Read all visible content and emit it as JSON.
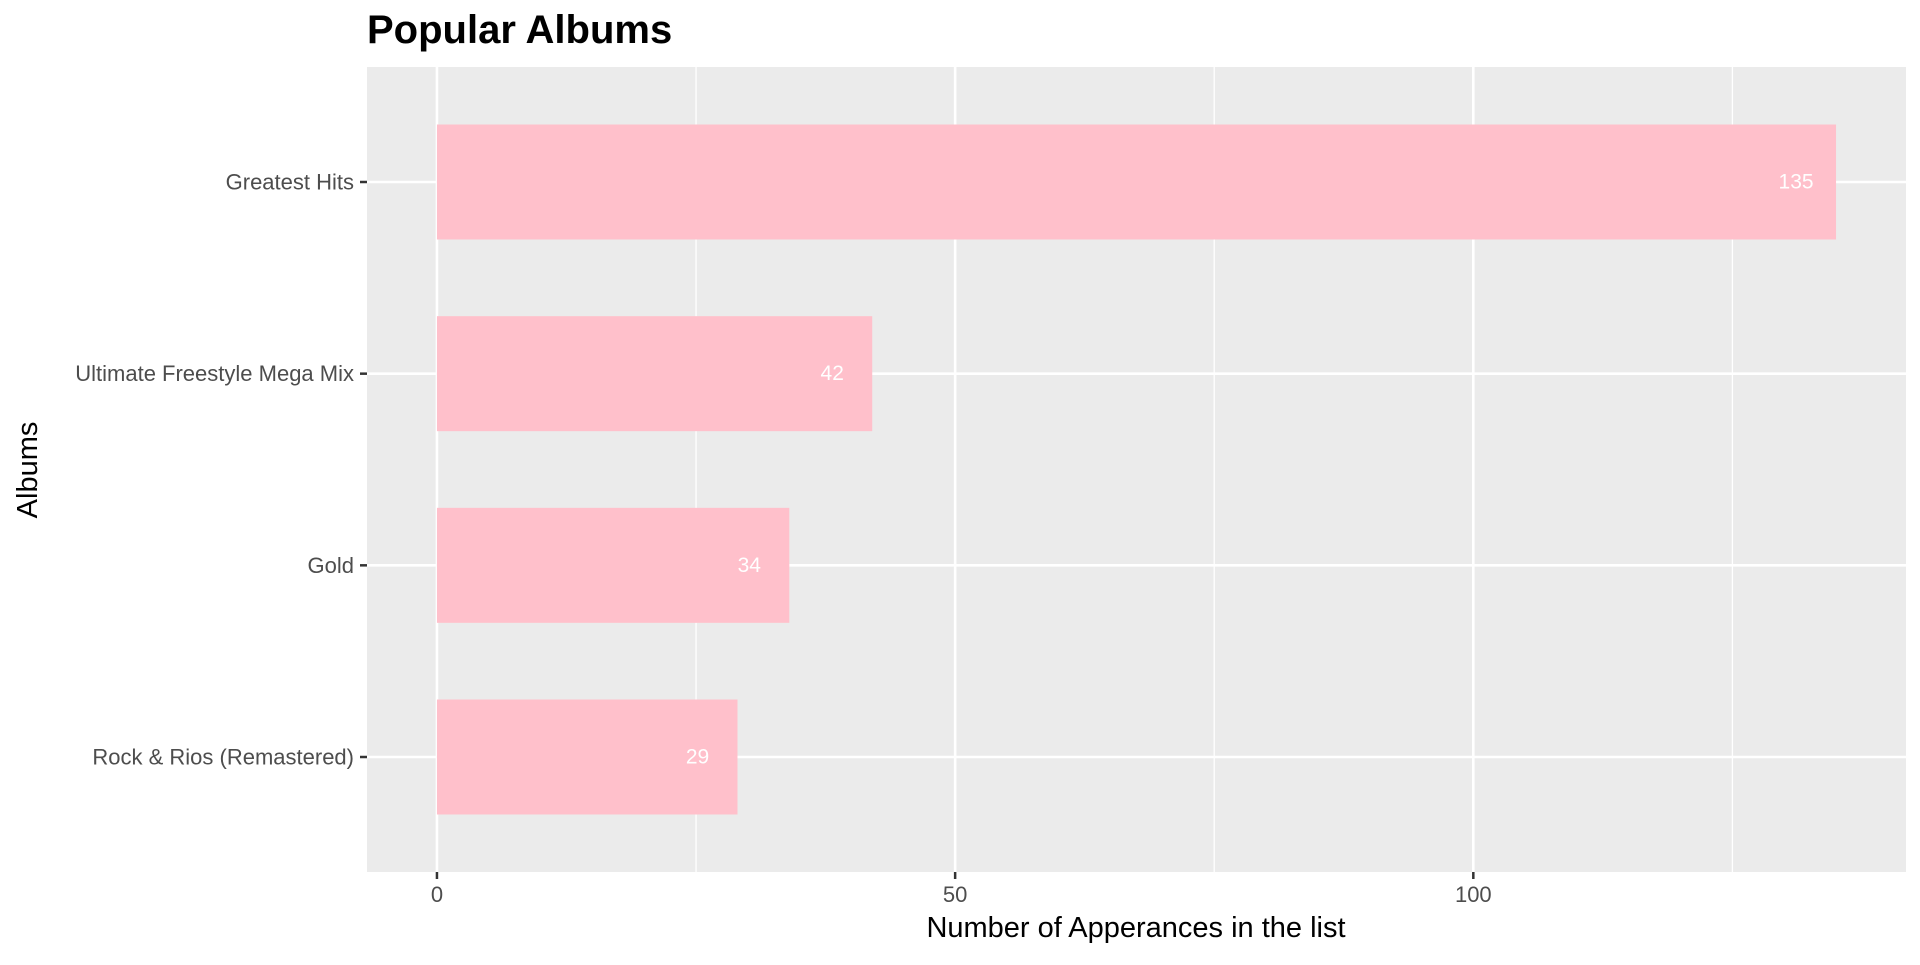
{
  "chart_data": {
    "type": "bar",
    "orientation": "horizontal",
    "title": "Popular Albums",
    "xlabel": "Number of Apperances in the list",
    "ylabel": "Albums",
    "categories": [
      "Greatest Hits",
      "Ultimate Freestyle Mega Mix",
      "Gold",
      "Rock & Rios (Remastered)"
    ],
    "values": [
      135,
      42,
      34,
      29
    ],
    "data_labels": [
      "135",
      "42",
      "34",
      "29"
    ],
    "x_ticks": [
      0,
      50,
      100
    ],
    "x_tick_labels": [
      "0",
      "50",
      "100"
    ],
    "x_minor_ticks": [
      25,
      75,
      125
    ],
    "xlim": [
      -6.75,
      141.75
    ],
    "grid": true,
    "legend": "none"
  },
  "colors": {
    "bar": "#ffc0cb",
    "panel": "#ebebeb",
    "grid": "#ffffff",
    "tick_text": "#4d4d4d",
    "tick_mark": "#333333",
    "title_text": "#000000",
    "data_label_text": "#ffffff"
  }
}
